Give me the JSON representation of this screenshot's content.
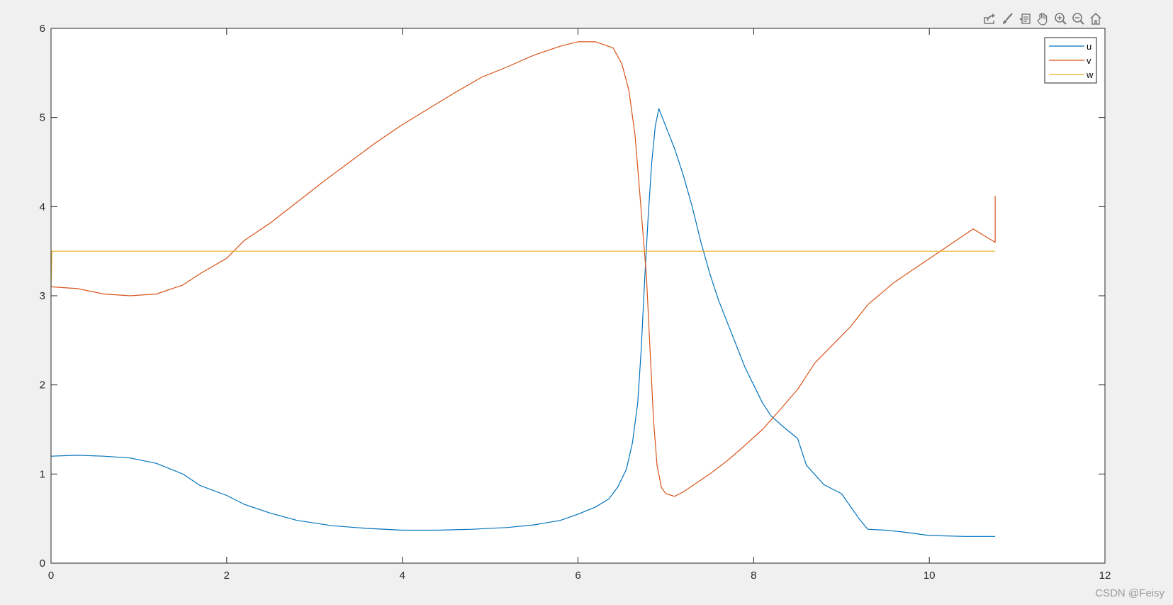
{
  "toolbar": {
    "icons": [
      "export-icon",
      "brush-icon",
      "datatip-icon",
      "pan-icon",
      "zoom-in-icon",
      "zoom-out-icon",
      "home-icon"
    ]
  },
  "watermark": "CSDN @Feisy",
  "chart_data": {
    "type": "line",
    "title": "",
    "xlabel": "",
    "ylabel": "",
    "xlim": [
      0,
      12
    ],
    "ylim": [
      0,
      6
    ],
    "xticks": [
      "0",
      "2",
      "4",
      "6",
      "8",
      "10",
      "12"
    ],
    "yticks": [
      "0",
      "1",
      "2",
      "3",
      "4",
      "5",
      "6"
    ],
    "grid": false,
    "legend_position": "top-right",
    "series": [
      {
        "name": "u",
        "color": "#0072BD",
        "points": [
          [
            0,
            1.2
          ],
          [
            0.3,
            1.21
          ],
          [
            0.6,
            1.2
          ],
          [
            0.9,
            1.18
          ],
          [
            1.2,
            1.12
          ],
          [
            1.5,
            1.0
          ],
          [
            1.7,
            0.87
          ],
          [
            2.0,
            0.76
          ],
          [
            2.2,
            0.66
          ],
          [
            2.5,
            0.56
          ],
          [
            2.8,
            0.48
          ],
          [
            3.2,
            0.42
          ],
          [
            3.6,
            0.39
          ],
          [
            4.0,
            0.37
          ],
          [
            4.4,
            0.37
          ],
          [
            4.8,
            0.38
          ],
          [
            5.2,
            0.4
          ],
          [
            5.5,
            0.43
          ],
          [
            5.8,
            0.48
          ],
          [
            6.0,
            0.55
          ],
          [
            6.2,
            0.63
          ],
          [
            6.35,
            0.72
          ],
          [
            6.45,
            0.85
          ],
          [
            6.55,
            1.05
          ],
          [
            6.62,
            1.35
          ],
          [
            6.68,
            1.8
          ],
          [
            6.72,
            2.4
          ],
          [
            6.76,
            3.2
          ],
          [
            6.8,
            3.9
          ],
          [
            6.84,
            4.5
          ],
          [
            6.88,
            4.9
          ],
          [
            6.92,
            5.1
          ],
          [
            6.96,
            5.0
          ],
          [
            7.0,
            4.9
          ],
          [
            7.1,
            4.65
          ],
          [
            7.2,
            4.35
          ],
          [
            7.3,
            4.0
          ],
          [
            7.4,
            3.6
          ],
          [
            7.5,
            3.25
          ],
          [
            7.6,
            2.95
          ],
          [
            7.7,
            2.7
          ],
          [
            7.8,
            2.45
          ],
          [
            7.9,
            2.2
          ],
          [
            8.0,
            2.0
          ],
          [
            8.1,
            1.8
          ],
          [
            8.2,
            1.65
          ],
          [
            8.35,
            1.52
          ],
          [
            8.5,
            1.4
          ],
          [
            8.6,
            1.1
          ],
          [
            8.8,
            0.88
          ],
          [
            9.0,
            0.78
          ],
          [
            9.2,
            0.5
          ],
          [
            9.3,
            0.38
          ],
          [
            9.5,
            0.37
          ],
          [
            9.7,
            0.35
          ],
          [
            10.0,
            0.31
          ],
          [
            10.4,
            0.3
          ],
          [
            10.75,
            0.3
          ]
        ]
      },
      {
        "name": "v",
        "color": "#D95319",
        "points": [
          [
            0,
            3.1
          ],
          [
            0.3,
            3.08
          ],
          [
            0.6,
            3.02
          ],
          [
            0.9,
            3.0
          ],
          [
            1.2,
            3.02
          ],
          [
            1.5,
            3.12
          ],
          [
            1.7,
            3.25
          ],
          [
            2.0,
            3.42
          ],
          [
            2.2,
            3.62
          ],
          [
            2.5,
            3.82
          ],
          [
            2.8,
            4.05
          ],
          [
            3.1,
            4.28
          ],
          [
            3.4,
            4.5
          ],
          [
            3.7,
            4.72
          ],
          [
            4.0,
            4.92
          ],
          [
            4.3,
            5.1
          ],
          [
            4.6,
            5.28
          ],
          [
            4.9,
            5.45
          ],
          [
            5.2,
            5.57
          ],
          [
            5.5,
            5.7
          ],
          [
            5.8,
            5.8
          ],
          [
            6.0,
            5.85
          ],
          [
            6.2,
            5.85
          ],
          [
            6.4,
            5.78
          ],
          [
            6.5,
            5.6
          ],
          [
            6.58,
            5.3
          ],
          [
            6.65,
            4.8
          ],
          [
            6.7,
            4.2
          ],
          [
            6.74,
            3.7
          ],
          [
            6.78,
            3.2
          ],
          [
            6.82,
            2.4
          ],
          [
            6.86,
            1.6
          ],
          [
            6.9,
            1.1
          ],
          [
            6.95,
            0.85
          ],
          [
            7.0,
            0.78
          ],
          [
            7.1,
            0.75
          ],
          [
            7.2,
            0.8
          ],
          [
            7.35,
            0.9
          ],
          [
            7.5,
            1.0
          ],
          [
            7.7,
            1.15
          ],
          [
            7.9,
            1.32
          ],
          [
            8.1,
            1.5
          ],
          [
            8.3,
            1.72
          ],
          [
            8.5,
            1.95
          ],
          [
            8.7,
            2.25
          ],
          [
            8.9,
            2.45
          ],
          [
            9.1,
            2.65
          ],
          [
            9.3,
            2.9
          ],
          [
            9.6,
            3.15
          ],
          [
            9.9,
            3.35
          ],
          [
            10.2,
            3.55
          ],
          [
            10.5,
            3.75
          ],
          [
            10.75,
            3.6
          ],
          [
            10.75,
            4.12
          ]
        ]
      },
      {
        "name": "w",
        "color": "#EDB120",
        "points": [
          [
            0,
            3.1
          ],
          [
            0.01,
            3.5
          ],
          [
            2.0,
            3.5
          ],
          [
            4.0,
            3.5
          ],
          [
            6.0,
            3.5
          ],
          [
            8.0,
            3.5
          ],
          [
            10.0,
            3.5
          ],
          [
            10.75,
            3.5
          ]
        ]
      }
    ]
  }
}
